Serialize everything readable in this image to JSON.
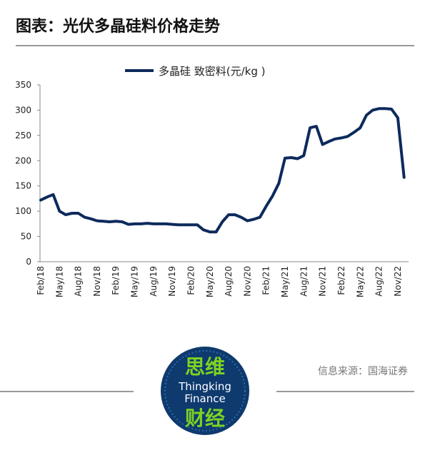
{
  "chart_data": {
    "type": "line",
    "title": "图表：光伏多晶硅料价格走势",
    "categories": [
      "Feb/18",
      null,
      null,
      "May/18",
      null,
      null,
      "Aug/18",
      null,
      null,
      "Nov/18",
      null,
      null,
      "Feb/19",
      null,
      null,
      "May/19",
      null,
      null,
      "Aug/19",
      null,
      null,
      "Nov/19",
      null,
      null,
      "Feb/20",
      null,
      null,
      "May/20",
      null,
      null,
      "Aug/20",
      null,
      null,
      "Nov/20",
      null,
      null,
      "Feb/21",
      null,
      null,
      "May/21",
      null,
      null,
      "Aug/21",
      null,
      null,
      "Nov/21",
      null,
      null,
      "Feb/22",
      null,
      null,
      "May/22",
      null,
      null,
      "Aug/22",
      null,
      null,
      "Nov/22",
      null
    ],
    "series": [
      {
        "name": "多晶硅 致密料(元/kg )",
        "color": "#0d2a5c",
        "values": [
          122,
          128,
          133,
          100,
          93,
          96,
          96,
          88,
          85,
          81,
          80,
          79,
          80,
          79,
          74,
          75,
          75,
          76,
          75,
          75,
          75,
          74,
          73,
          73,
          73,
          73,
          63,
          59,
          59,
          79,
          93,
          93,
          88,
          81,
          84,
          88,
          110,
          130,
          155,
          205,
          206,
          204,
          210,
          265,
          268,
          232,
          238,
          243,
          245,
          248,
          256,
          265,
          290,
          300,
          303,
          303,
          302,
          285,
          167
        ]
      }
    ],
    "ylim": [
      0,
      350
    ],
    "yticks": [
      0,
      50,
      100,
      150,
      200,
      250,
      300,
      350
    ],
    "grid": false,
    "legend": "top"
  },
  "source": "信息来源：国海证券",
  "logo": {
    "top": "思维",
    "line1": "Thingking",
    "line2": "Finance",
    "bottom": "财经"
  }
}
